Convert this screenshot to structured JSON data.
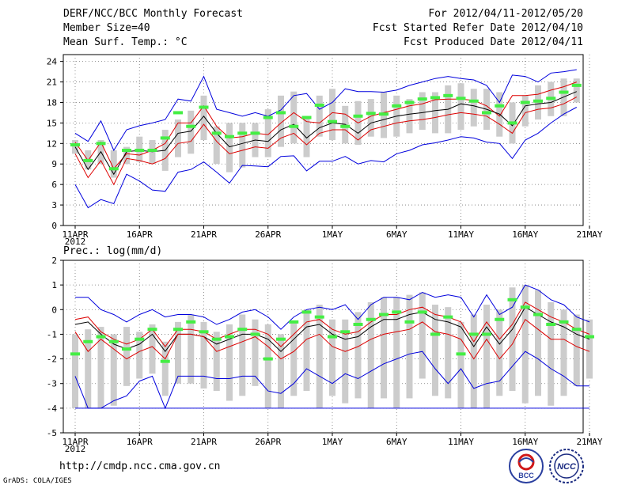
{
  "header": {
    "title": "DERF/NCC/BCC Monthly Forecast",
    "member_size": "Member Size=40",
    "variable": "Mean Surf. Temp.: °C",
    "period": "For 2012/04/11-2012/05/20",
    "start_date": "Fcst Started Refer Date 2012/04/10",
    "produced_date": "Fcst Produced Date 2012/04/11"
  },
  "footer": {
    "url": "http://cmdp.ncc.cma.gov.cn",
    "grads": "GrADS: COLA/IGES",
    "logo_bcc": "BCC",
    "logo_ncc": "NCC"
  },
  "colors": {
    "max_min": "#0000dd",
    "std": "#dd0000",
    "mean": "#000000",
    "obs": "#44ee44",
    "box": "#cccccc",
    "grid": "#777777"
  },
  "chart_data": [
    {
      "type": "line",
      "title": "Mean Surf. Temp.: °C",
      "x_tick_labels": [
        "11APR",
        "16APR",
        "21APR",
        "26APR",
        "1MAY",
        "6MAY",
        "11MAY",
        "16MAY",
        "21MAY"
      ],
      "x_year_label": "2012",
      "ylim": [
        0,
        25
      ],
      "y_ticks": [
        0,
        3,
        6,
        9,
        12,
        15,
        18,
        21,
        24
      ],
      "series": [
        {
          "name": "max",
          "values": [
            13.5,
            12.3,
            15.3,
            11.0,
            14.0,
            14.6,
            15.0,
            15.5,
            18.5,
            18.2,
            21.8,
            17.0,
            16.5,
            16.0,
            16.5,
            16.0,
            16.9,
            19.0,
            19.3,
            17.0,
            18.0,
            20.0,
            19.6,
            19.6,
            19.5,
            19.8,
            20.5,
            21.0,
            21.5,
            21.8,
            21.5,
            21.3,
            20.5,
            18.0,
            22.0,
            21.8,
            21.0,
            22.3,
            22.5,
            22.8
          ]
        },
        {
          "name": "upper",
          "values": [
            12.2,
            9.5,
            12.2,
            8.3,
            10.5,
            10.3,
            11.0,
            12.0,
            15.0,
            15.0,
            17.5,
            14.5,
            12.8,
            13.0,
            13.5,
            13.3,
            15.0,
            16.5,
            15.2,
            15.0,
            16.5,
            16.3,
            15.0,
            16.0,
            16.5,
            17.0,
            17.5,
            17.8,
            18.4,
            18.5,
            18.5,
            18.3,
            17.5,
            16.0,
            19.0,
            19.0,
            19.2,
            19.8,
            20.3,
            21.0
          ]
        },
        {
          "name": "mean",
          "values": [
            11.5,
            8.2,
            10.8,
            7.5,
            10.8,
            11.0,
            10.8,
            11.0,
            13.5,
            13.8,
            16.0,
            13.5,
            11.5,
            12.0,
            12.5,
            12.3,
            14.0,
            14.8,
            12.8,
            14.3,
            15.0,
            14.8,
            13.5,
            15.0,
            15.5,
            16.0,
            16.3,
            16.5,
            16.8,
            17.0,
            17.8,
            17.5,
            17.0,
            16.3,
            14.6,
            17.5,
            17.8,
            18.0,
            18.8,
            19.6
          ]
        },
        {
          "name": "lower",
          "values": [
            10.5,
            7.0,
            9.5,
            6.0,
            9.8,
            9.5,
            9.0,
            9.8,
            12.0,
            12.3,
            14.8,
            12.3,
            10.5,
            11.0,
            11.5,
            11.3,
            12.8,
            13.5,
            11.8,
            13.5,
            14.0,
            14.0,
            12.5,
            14.0,
            14.5,
            15.0,
            15.3,
            15.5,
            15.8,
            16.2,
            16.5,
            16.3,
            16.0,
            14.8,
            13.5,
            16.5,
            17.0,
            17.2,
            17.8,
            18.8
          ]
        },
        {
          "name": "min",
          "values": [
            6.0,
            2.6,
            3.8,
            3.2,
            7.5,
            6.5,
            5.2,
            5.0,
            7.8,
            8.2,
            9.3,
            7.8,
            6.2,
            8.8,
            8.7,
            8.6,
            10.1,
            10.2,
            8.0,
            9.4,
            9.4,
            10.1,
            9.0,
            9.5,
            9.3,
            10.5,
            11.0,
            11.8,
            12.1,
            12.5,
            13.0,
            12.8,
            12.2,
            12.0,
            9.8,
            12.5,
            13.5,
            15.0,
            16.3,
            17.3
          ]
        },
        {
          "name": "observed",
          "values": [
            11.8,
            9.5,
            12.0,
            8.3,
            11.0,
            11.0,
            11.0,
            12.8,
            16.5,
            14.5,
            17.3,
            13.5,
            13.0,
            13.5,
            13.5,
            15.8,
            16.5,
            14.5,
            15.8,
            17.6,
            15.2,
            14.5,
            16.0,
            16.4,
            16.3,
            17.5,
            18.0,
            18.5,
            18.7,
            19.0,
            18.6,
            18.2,
            16.5,
            17.5,
            15.0,
            18.0,
            18.2,
            18.6,
            19.5,
            20.5
          ]
        }
      ],
      "box_ranges": [
        [
          10.5,
          12.5
        ],
        [
          8.2,
          11.0
        ],
        [
          9.0,
          12.5
        ],
        [
          7.0,
          11.0
        ],
        [
          9.0,
          11.5
        ],
        [
          9.3,
          13.0
        ],
        [
          9.0,
          12.5
        ],
        [
          8.0,
          14.0
        ],
        [
          10.0,
          15.5
        ],
        [
          10.5,
          16.8
        ],
        [
          12.5,
          19.0
        ],
        [
          9.0,
          14.5
        ],
        [
          7.8,
          15.0
        ],
        [
          8.5,
          15.0
        ],
        [
          10.0,
          15.0
        ],
        [
          10.0,
          17.0
        ],
        [
          11.5,
          19.0
        ],
        [
          12.0,
          19.6
        ],
        [
          10.0,
          16.0
        ],
        [
          13.0,
          19.0
        ],
        [
          12.5,
          20.0
        ],
        [
          12.0,
          17.5
        ],
        [
          11.8,
          18.2
        ],
        [
          13.0,
          18.5
        ],
        [
          12.8,
          19.5
        ],
        [
          13.0,
          19.0
        ],
        [
          13.5,
          18.5
        ],
        [
          14.0,
          19.5
        ],
        [
          13.5,
          19.5
        ],
        [
          13.5,
          20.5
        ],
        [
          14.0,
          20.8
        ],
        [
          14.5,
          20.0
        ],
        [
          14.0,
          20.0
        ],
        [
          13.0,
          19.5
        ],
        [
          12.0,
          18.0
        ],
        [
          14.5,
          19.0
        ],
        [
          15.5,
          20.5
        ],
        [
          16.0,
          21.0
        ],
        [
          16.0,
          21.5
        ],
        [
          18.0,
          21.5
        ]
      ]
    },
    {
      "type": "line",
      "title": "Prec.: log(mm/d)",
      "x_tick_labels": [
        "11APR",
        "16APR",
        "21APR",
        "26APR",
        "1MAY",
        "6MAY",
        "11MAY",
        "16MAY",
        "21MAY"
      ],
      "x_year_label": "2012",
      "ylim": [
        -5,
        2
      ],
      "y_ticks": [
        -5,
        -4,
        -3,
        -2,
        -1,
        0,
        1,
        2
      ],
      "series": [
        {
          "name": "max",
          "values": [
            0.5,
            0.5,
            0.0,
            -0.2,
            -0.5,
            -0.2,
            0.0,
            -0.3,
            -0.2,
            -0.2,
            -0.3,
            -0.6,
            -0.4,
            -0.1,
            0.0,
            -0.3,
            -0.8,
            -0.3,
            0.0,
            0.1,
            0.0,
            0.2,
            -0.4,
            0.2,
            0.5,
            0.5,
            0.4,
            0.7,
            0.5,
            0.6,
            0.5,
            -0.3,
            0.6,
            -0.2,
            0.1,
            1.0,
            0.8,
            0.4,
            0.2,
            -0.3,
            -0.5
          ]
        },
        {
          "name": "upper",
          "values": [
            -0.4,
            -0.3,
            -0.9,
            -1.2,
            -1.4,
            -1.2,
            -0.8,
            -1.5,
            -0.8,
            -0.8,
            -0.9,
            -1.2,
            -1.0,
            -0.8,
            -0.8,
            -1.0,
            -1.5,
            -1.0,
            -0.5,
            -0.4,
            -0.8,
            -1.0,
            -0.9,
            -0.5,
            -0.2,
            -0.2,
            0.0,
            0.1,
            -0.2,
            -0.3,
            -0.5,
            -1.3,
            -0.5,
            -1.2,
            -0.6,
            0.3,
            0.0,
            -0.3,
            -0.5,
            -0.8,
            -1.0
          ]
        },
        {
          "name": "mean",
          "values": [
            -0.6,
            -0.5,
            -1.0,
            -1.4,
            -1.6,
            -1.4,
            -1.0,
            -1.7,
            -1.0,
            -1.0,
            -1.1,
            -1.4,
            -1.2,
            -1.0,
            -1.0,
            -1.2,
            -1.7,
            -1.2,
            -0.7,
            -0.6,
            -1.0,
            -1.2,
            -1.1,
            -0.7,
            -0.4,
            -0.4,
            -0.2,
            -0.1,
            -0.4,
            -0.5,
            -0.7,
            -1.5,
            -0.7,
            -1.4,
            -0.8,
            0.1,
            -0.2,
            -0.5,
            -0.7,
            -1.0,
            -1.2
          ]
        },
        {
          "name": "lower",
          "values": [
            -0.9,
            -1.7,
            -1.2,
            -1.6,
            -2.0,
            -1.7,
            -1.5,
            -2.0,
            -1.0,
            -1.0,
            -1.1,
            -1.7,
            -1.5,
            -1.3,
            -1.1,
            -1.5,
            -2.0,
            -1.7,
            -1.2,
            -1.0,
            -1.5,
            -1.7,
            -1.5,
            -1.2,
            -1.0,
            -0.9,
            -0.8,
            -0.5,
            -0.9,
            -1.0,
            -1.2,
            -2.0,
            -1.2,
            -2.0,
            -1.4,
            -0.4,
            -0.8,
            -1.2,
            -1.2,
            -1.5,
            -1.7
          ]
        },
        {
          "name": "min",
          "values": [
            -2.7,
            -4.0,
            -4.0,
            -3.7,
            -3.5,
            -2.9,
            -2.7,
            -4.0,
            -2.7,
            -2.7,
            -2.7,
            -2.8,
            -2.8,
            -2.7,
            -2.7,
            -3.3,
            -3.4,
            -3.0,
            -2.4,
            -2.7,
            -3.0,
            -2.6,
            -2.8,
            -2.5,
            -2.2,
            -2.0,
            -1.8,
            -1.7,
            -2.4,
            -3.0,
            -2.4,
            -3.2,
            -3.0,
            -2.9,
            -2.3,
            -1.7,
            -2.0,
            -2.4,
            -2.7,
            -3.1,
            -3.1
          ]
        },
        {
          "name": "observed",
          "values": [
            -1.8,
            -1.3,
            -1.1,
            -1.3,
            -1.6,
            -1.2,
            -0.8,
            -2.1,
            -0.8,
            -0.5,
            -0.9,
            -1.2,
            -1.1,
            -0.8,
            -1.0,
            -2.0,
            -1.2,
            -0.5,
            -0.1,
            -0.3,
            -1.1,
            -0.9,
            -0.6,
            -0.4,
            -0.2,
            -0.1,
            -0.5,
            -0.1,
            -1.0,
            -0.3,
            -1.8,
            -1.0,
            -1.0,
            -0.4,
            0.4,
            0.1,
            -0.2,
            -0.6,
            -0.5,
            -0.8,
            -1.1
          ]
        }
      ],
      "box_ranges": [
        [
          -4.0,
          -1.0
        ],
        [
          -4.0,
          -0.8
        ],
        [
          -4.0,
          -0.7
        ],
        [
          -3.9,
          -1.0
        ],
        [
          -3.1,
          -0.7
        ],
        [
          -2.8,
          -0.9
        ],
        [
          -2.6,
          -0.6
        ],
        [
          -3.5,
          -1.3
        ],
        [
          -3.0,
          -0.5
        ],
        [
          -3.0,
          -0.2
        ],
        [
          -3.2,
          -0.5
        ],
        [
          -3.3,
          -0.9
        ],
        [
          -3.7,
          -0.6
        ],
        [
          -3.5,
          -0.2
        ],
        [
          -3.1,
          -0.4
        ],
        [
          -4.0,
          -0.6
        ],
        [
          -4.0,
          -1.0
        ],
        [
          -3.5,
          -0.5
        ],
        [
          -3.3,
          0.0
        ],
        [
          -4.0,
          0.2
        ],
        [
          -3.5,
          -0.4
        ],
        [
          -3.8,
          -0.4
        ],
        [
          -3.6,
          -0.1
        ],
        [
          -4.0,
          0.3
        ],
        [
          -3.6,
          0.5
        ],
        [
          -4.0,
          0.5
        ],
        [
          -3.6,
          0.6
        ],
        [
          -2.8,
          0.7
        ],
        [
          -3.5,
          0.2
        ],
        [
          -3.6,
          0.1
        ],
        [
          -4.0,
          -0.5
        ],
        [
          -4.0,
          -0.2
        ],
        [
          -4.0,
          0.2
        ],
        [
          -3.5,
          0.0
        ],
        [
          -3.3,
          0.9
        ],
        [
          -3.8,
          1.0
        ],
        [
          -3.5,
          0.8
        ],
        [
          -3.9,
          0.3
        ],
        [
          -3.5,
          0.0
        ],
        [
          -3.1,
          -0.2
        ],
        [
          -2.8,
          -0.4
        ]
      ]
    }
  ]
}
